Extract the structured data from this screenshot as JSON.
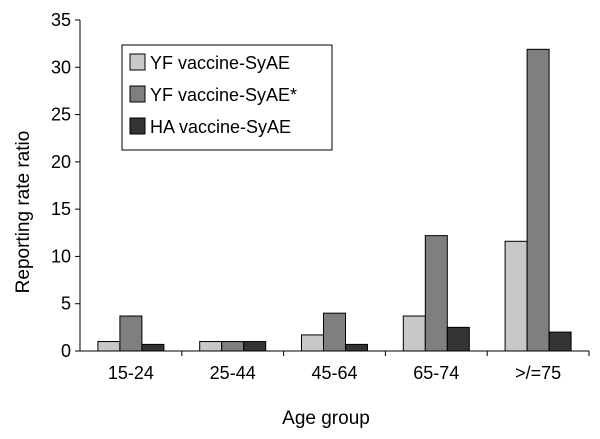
{
  "chart_data": {
    "type": "bar",
    "xlabel": "Age group",
    "ylabel": "Reporting rate ratio",
    "ylim": [
      0,
      35
    ],
    "yticks": [
      0,
      5,
      10,
      15,
      20,
      25,
      30,
      35
    ],
    "grid": false,
    "legend_position": "top-left",
    "categories": [
      "15-24",
      "25-44",
      "45-64",
      "65-74",
      ">/=75"
    ],
    "series": [
      {
        "name": "YF vaccine-SyAE",
        "color": "#c8c8c8",
        "values": [
          1.0,
          1.0,
          1.7,
          3.7,
          11.6
        ]
      },
      {
        "name": "YF vaccine-SyAE*",
        "color": "#7f7f7f",
        "values": [
          3.7,
          1.0,
          4.0,
          12.2,
          31.9
        ]
      },
      {
        "name": "HA vaccine-SyAE",
        "color": "#333333",
        "values": [
          0.7,
          1.0,
          0.7,
          2.5,
          2.0
        ]
      }
    ]
  }
}
